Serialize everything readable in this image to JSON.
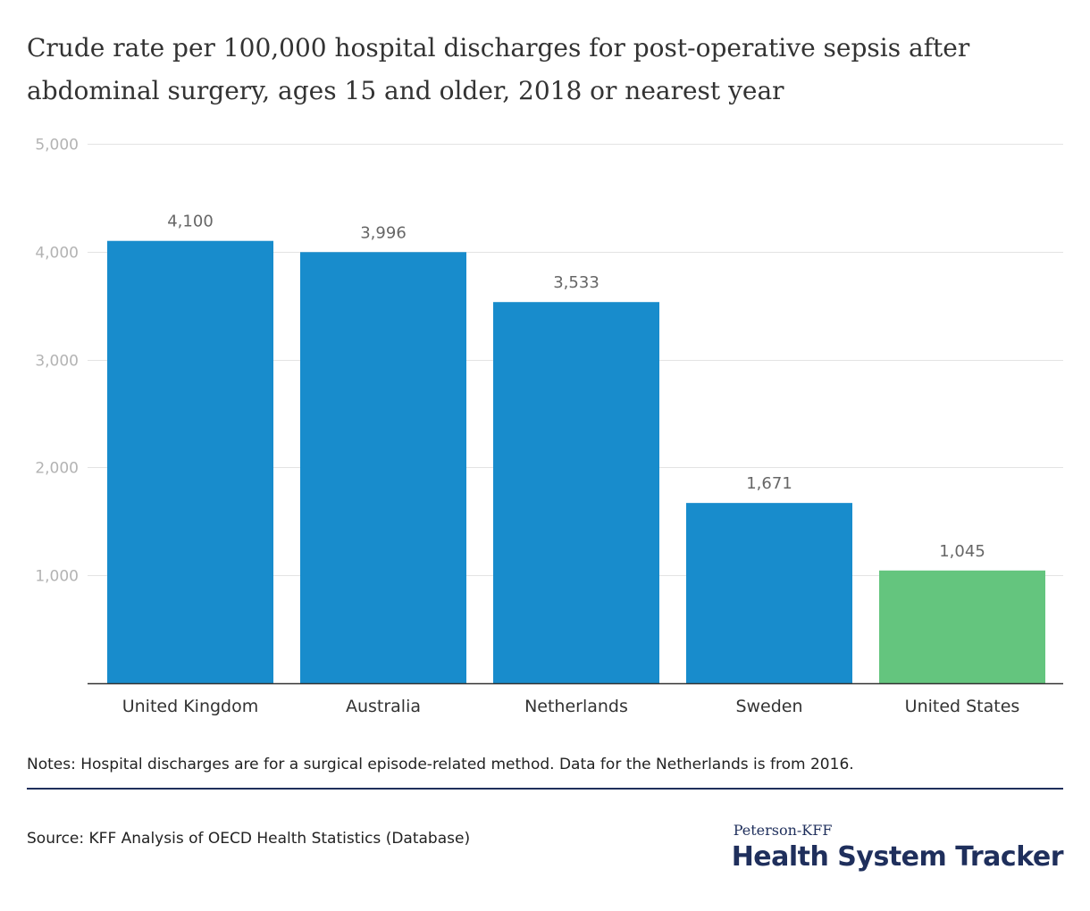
{
  "chart_data": {
    "type": "bar",
    "title": "Crude rate per 100,000 hospital discharges for post-operative sepsis after abdominal surgery, ages 15 and older, 2018 or nearest year",
    "categories": [
      "United Kingdom",
      "Australia",
      "Netherlands",
      "Sweden",
      "United States"
    ],
    "values": [
      4100,
      3996,
      3533,
      1671,
      1045
    ],
    "value_labels": [
      "4,100",
      "3,996",
      "3,533",
      "1,671",
      "1,045"
    ],
    "bar_colors": [
      "#188ccc",
      "#188ccc",
      "#188ccc",
      "#188ccc",
      "#64c57e"
    ],
    "ylim": [
      0,
      5000
    ],
    "yticks": [
      1000,
      2000,
      3000,
      4000,
      5000
    ],
    "ytick_labels": [
      "1,000",
      "2,000",
      "3,000",
      "4,000",
      "5,000"
    ],
    "xlabel": "",
    "ylabel": "",
    "grid": true,
    "legend": "none"
  },
  "notes": "Notes: Hospital discharges are for a surgical episode-related method. Data for the Netherlands is from 2016.",
  "source": "Source: KFF Analysis of OECD Health Statistics (Database)",
  "logo": {
    "top": "Peterson-KFF",
    "bottom": "Health System Tracker"
  },
  "colors": {
    "bar": "#188ccc",
    "highlight_bar": "#64c57e",
    "brand": "#1f2f5c",
    "grid": "#e3e3e3"
  }
}
